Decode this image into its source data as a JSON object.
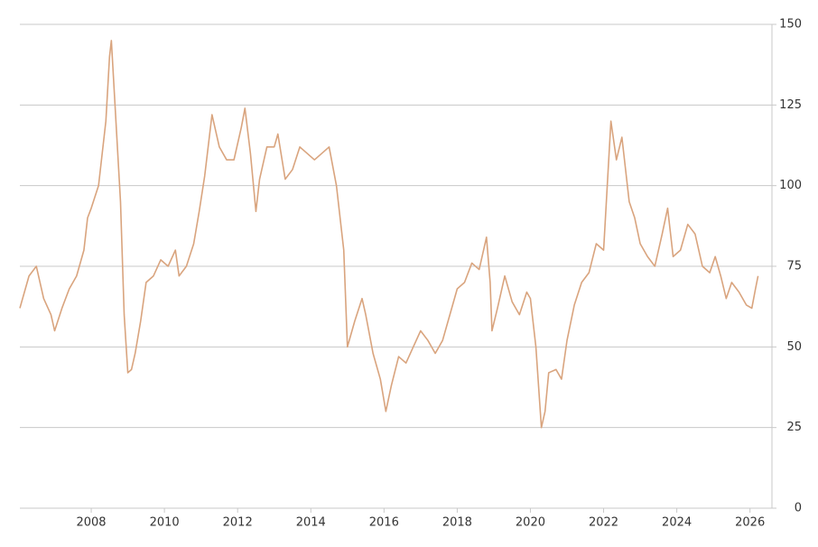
{
  "chart_data": {
    "type": "line",
    "x": [
      2006.05,
      2006.3,
      2006.5,
      2006.7,
      2006.9,
      2007.0,
      2007.2,
      2007.4,
      2007.6,
      2007.8,
      2007.9,
      2008.0,
      2008.2,
      2008.4,
      2008.5,
      2008.55,
      2008.7,
      2008.8,
      2008.9,
      2009.0,
      2009.1,
      2009.2,
      2009.35,
      2009.5,
      2009.7,
      2009.9,
      2010.1,
      2010.3,
      2010.4,
      2010.6,
      2010.8,
      2010.95,
      2011.1,
      2011.3,
      2011.5,
      2011.7,
      2011.9,
      2012.1,
      2012.2,
      2012.35,
      2012.5,
      2012.6,
      2012.8,
      2013.0,
      2013.1,
      2013.3,
      2013.5,
      2013.7,
      2013.9,
      2014.1,
      2014.3,
      2014.5,
      2014.7,
      2014.9,
      2015.0,
      2015.2,
      2015.4,
      2015.5,
      2015.7,
      2015.9,
      2016.05,
      2016.2,
      2016.4,
      2016.6,
      2016.8,
      2017.0,
      2017.2,
      2017.4,
      2017.6,
      2017.8,
      2018.0,
      2018.2,
      2018.4,
      2018.6,
      2018.8,
      2018.9,
      2018.95,
      2019.1,
      2019.3,
      2019.5,
      2019.7,
      2019.9,
      2020.0,
      2020.15,
      2020.3,
      2020.4,
      2020.5,
      2020.7,
      2020.85,
      2021.0,
      2021.2,
      2021.4,
      2021.6,
      2021.8,
      2022.0,
      2022.2,
      2022.35,
      2022.5,
      2022.7,
      2022.85,
      2023.0,
      2023.2,
      2023.4,
      2023.6,
      2023.75,
      2023.9,
      2024.1,
      2024.3,
      2024.5,
      2024.7,
      2024.9,
      2025.05,
      2025.2,
      2025.35,
      2025.5,
      2025.7,
      2025.9,
      2026.05,
      2026.15,
      2026.22
    ],
    "series": [
      {
        "color": "#d9a47e",
        "values": [
          62,
          72,
          75,
          65,
          60,
          55,
          62,
          68,
          72,
          80,
          90,
          93,
          100,
          120,
          140,
          145,
          115,
          95,
          60,
          42,
          43,
          48,
          58,
          70,
          72,
          77,
          75,
          80,
          72,
          75,
          82,
          92,
          103,
          122,
          112,
          108,
          108,
          118,
          124,
          110,
          92,
          102,
          112,
          112,
          116,
          102,
          105,
          112,
          110,
          108,
          110,
          112,
          100,
          80,
          50,
          58,
          65,
          60,
          48,
          40,
          30,
          38,
          47,
          45,
          50,
          55,
          52,
          48,
          52,
          60,
          68,
          70,
          76,
          74,
          84,
          70,
          55,
          62,
          72,
          64,
          60,
          67,
          65,
          50,
          25,
          30,
          42,
          43,
          40,
          52,
          63,
          70,
          73,
          82,
          80,
          120,
          108,
          115,
          95,
          90,
          82,
          78,
          75,
          85,
          93,
          78,
          80,
          88,
          85,
          75,
          73,
          78,
          72,
          65,
          70,
          67,
          63,
          62,
          68,
          72
        ]
      }
    ],
    "xlim": [
      2006.05,
      2026.6
    ],
    "xticks": [
      2008,
      2010,
      2012,
      2014,
      2016,
      2018,
      2020,
      2022,
      2024,
      2026
    ],
    "ylim": [
      0,
      150
    ],
    "yticks": [
      0,
      25,
      50,
      75,
      100,
      125,
      150
    ],
    "grid": true
  }
}
